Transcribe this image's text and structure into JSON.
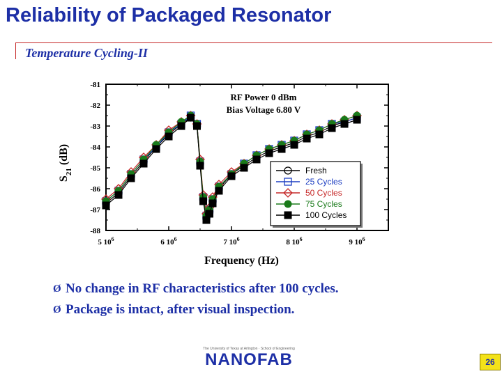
{
  "slide": {
    "title": "Reliability of Packaged Resonator",
    "subtitle": "Temperature Cycling-II",
    "bullets": [
      "No change in RF characteristics after 100 cycles.",
      "Package is intact, after visual inspection."
    ],
    "bullet_glyph": "Ø",
    "footer": {
      "fine_print": "The University of Texas at Arlington · School of Engineering",
      "brand": "NANOFAB"
    },
    "page_number": "26"
  },
  "colors": {
    "title": "#1d2fa6",
    "rule": "#c62828",
    "badge": "#f3e21a"
  },
  "chart_data": {
    "type": "line",
    "xlabel": "Frequency (Hz)",
    "ylabel": "S21 (dB)",
    "ylabel_main": "S",
    "ylabel_sub": "21",
    "ylabel_unit": "(dB)",
    "xlim": [
      5000000,
      9500000
    ],
    "ylim": [
      -88,
      -81
    ],
    "x_ticks": [
      5000000,
      6000000,
      7000000,
      8000000,
      9000000
    ],
    "x_tick_labels": [
      {
        "base": "5 10",
        "exp": "6"
      },
      {
        "base": "6 10",
        "exp": "6"
      },
      {
        "base": "7 10",
        "exp": "6"
      },
      {
        "base": "8 10",
        "exp": "6"
      },
      {
        "base": "9 10",
        "exp": "6"
      }
    ],
    "y_ticks": [
      -81,
      -82,
      -83,
      -84,
      -85,
      -86,
      -87,
      -88
    ],
    "y_tick_labels": [
      "-81",
      "-82",
      "-83",
      "-84",
      "-85",
      "-86",
      "-87",
      "-88"
    ],
    "annotations": [
      "RF Power 0 dBm",
      "Bias Voltage 6.80 V"
    ],
    "legend": "lower-right",
    "grid": false,
    "x": [
      5000000,
      5200000,
      5400000,
      5600000,
      5800000,
      6000000,
      6200000,
      6350000,
      6450000,
      6500000,
      6550000,
      6600000,
      6650000,
      6700000,
      6800000,
      7000000,
      7200000,
      7400000,
      7600000,
      7800000,
      8000000,
      8200000,
      8400000,
      8600000,
      8800000,
      9000000
    ],
    "series": [
      {
        "name": "Fresh",
        "marker": "circle",
        "color": "#000000",
        "values": [
          -86.7,
          -86.2,
          -85.4,
          -84.7,
          -84.0,
          -83.4,
          -82.9,
          -82.6,
          -83.0,
          -84.8,
          -86.5,
          -87.4,
          -87.1,
          -86.6,
          -86.0,
          -85.3,
          -84.9,
          -84.5,
          -84.2,
          -84.0,
          -83.8,
          -83.5,
          -83.3,
          -83.0,
          -82.8,
          -82.6
        ]
      },
      {
        "name": "25 Cycles",
        "marker": "square-open",
        "color": "#1d3ec2",
        "values": [
          -86.6,
          -86.1,
          -85.3,
          -84.6,
          -84.0,
          -83.3,
          -82.9,
          -82.5,
          -82.9,
          -84.7,
          -86.4,
          -87.3,
          -87.0,
          -86.5,
          -85.9,
          -85.3,
          -84.8,
          -84.4,
          -84.1,
          -83.9,
          -83.7,
          -83.4,
          -83.2,
          -82.9,
          -82.8,
          -82.6
        ]
      },
      {
        "name": "50 Cycles",
        "marker": "diamond",
        "color": "#c62828",
        "values": [
          -86.5,
          -86.0,
          -85.2,
          -84.5,
          -83.9,
          -83.2,
          -82.8,
          -82.5,
          -82.9,
          -84.6,
          -86.3,
          -87.2,
          -86.9,
          -86.4,
          -85.8,
          -85.2,
          -84.8,
          -84.4,
          -84.1,
          -83.9,
          -83.7,
          -83.4,
          -83.2,
          -82.9,
          -82.7,
          -82.5
        ]
      },
      {
        "name": "75 Cycles",
        "marker": "circle-filled",
        "color": "#1a7a1a",
        "values": [
          -86.6,
          -86.1,
          -85.3,
          -84.6,
          -83.9,
          -83.3,
          -82.8,
          -82.5,
          -82.9,
          -84.7,
          -86.4,
          -87.3,
          -87.0,
          -86.5,
          -85.9,
          -85.3,
          -84.8,
          -84.4,
          -84.1,
          -83.9,
          -83.7,
          -83.4,
          -83.2,
          -82.9,
          -82.7,
          -82.5
        ]
      },
      {
        "name": "100 Cycles",
        "marker": "square-filled",
        "color": "#000000",
        "values": [
          -86.8,
          -86.3,
          -85.5,
          -84.8,
          -84.1,
          -83.5,
          -83.0,
          -82.6,
          -83.0,
          -84.9,
          -86.6,
          -87.5,
          -87.2,
          -86.7,
          -86.1,
          -85.4,
          -85.0,
          -84.6,
          -84.3,
          -84.1,
          -83.9,
          -83.6,
          -83.4,
          -83.1,
          -82.9,
          -82.7
        ]
      }
    ]
  }
}
